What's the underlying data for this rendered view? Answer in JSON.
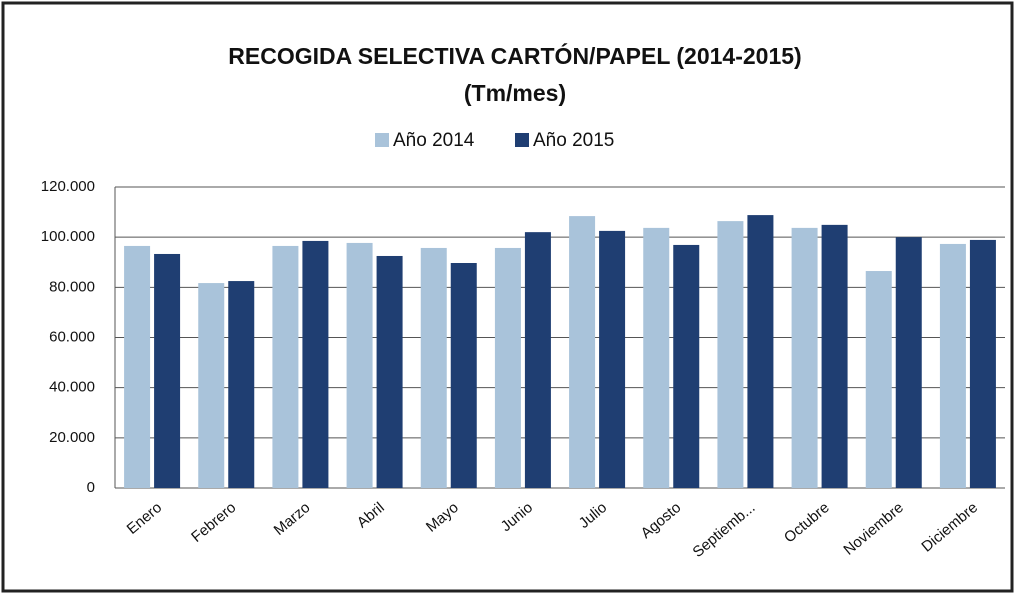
{
  "chart_data": {
    "type": "bar",
    "title": "RECOGIDA SELECTIVA CARTÓN/PAPEL (2014-2015)",
    "subtitle": "(Tm/mes)",
    "categories": [
      "Enero",
      "Febrero",
      "Marzo",
      "Abril",
      "Mayo",
      "Junio",
      "Julio",
      "Agosto",
      "Septiemb...",
      "Octubre",
      "Noviembre",
      "Diciembre"
    ],
    "series": [
      {
        "name": "Año 2014",
        "color": "#a9c3da",
        "values": [
          96500,
          81700,
          96500,
          97700,
          95700,
          95700,
          108400,
          103700,
          106400,
          103700,
          86500,
          97300
        ]
      },
      {
        "name": "Año 2015",
        "color": "#1f3e72",
        "values": [
          93300,
          82500,
          98500,
          92500,
          89700,
          102000,
          102500,
          96900,
          108800,
          104900,
          100000,
          98900
        ]
      }
    ],
    "ylim": [
      0,
      120000
    ],
    "yticks": [
      0,
      {
        "value": 20000,
        "label": "20.000"
      },
      {
        "value": 40000,
        "label": "40.000"
      },
      {
        "value": 60000,
        "label": "60.000"
      },
      {
        "value": 80000,
        "label": "80.000"
      },
      {
        "value": 100000,
        "label": "100.000"
      },
      {
        "value": 120000,
        "label": "120.000"
      }
    ],
    "grid": true,
    "legend": "top"
  }
}
